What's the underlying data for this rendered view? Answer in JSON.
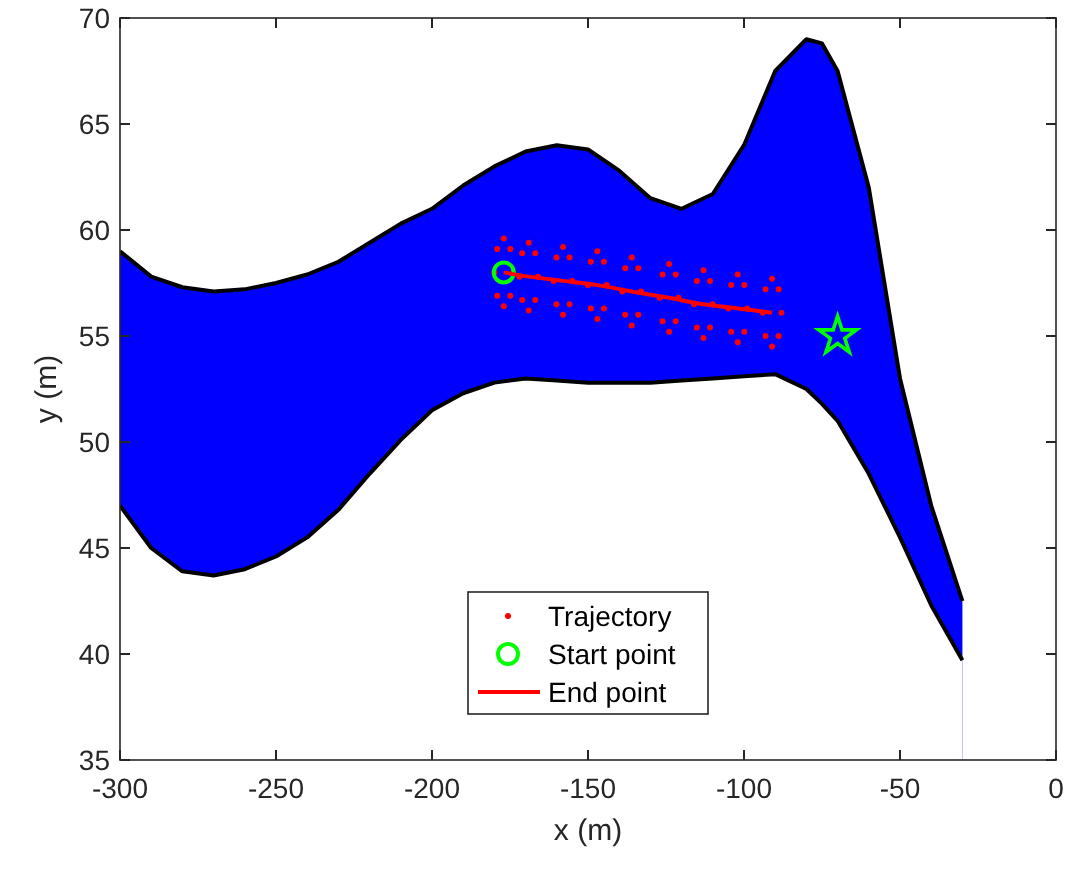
{
  "chart_data": {
    "type": "area",
    "xlabel": "x (m)",
    "ylabel": "y (m)",
    "xlim": [
      -300,
      0
    ],
    "ylim": [
      35,
      70
    ],
    "xticks": [
      -300,
      -250,
      -200,
      -150,
      -100,
      -50,
      0
    ],
    "yticks": [
      35,
      40,
      45,
      50,
      55,
      60,
      65,
      70
    ],
    "grid": false,
    "legend": "bottom",
    "series": [
      {
        "color": "#0000ff",
        "x": [
          -300,
          -290,
          -280,
          -270,
          -260,
          -250,
          -240,
          -230,
          -220,
          -210,
          -200,
          -190,
          -180,
          -170,
          -160,
          -150,
          -140,
          -130,
          -120,
          -110,
          -100,
          -90,
          -80,
          -75,
          -70,
          -60,
          -50,
          -40,
          -30
        ],
        "values": [
          59,
          57.8,
          57.3,
          57.1,
          57.2,
          57.5,
          57.9,
          58.5,
          59.4,
          60.3,
          61,
          62.1,
          63,
          63.7,
          64,
          63.8,
          62.8,
          61.5,
          61,
          61.7,
          64,
          67.5,
          69,
          68.8,
          67.5,
          62,
          53,
          47,
          42.5
        ]
      },
      {
        "color": "#ffffff",
        "x": [
          -300,
          -290,
          -280,
          -270,
          -260,
          -250,
          -240,
          -230,
          -220,
          -210,
          -200,
          -190,
          -180,
          -170,
          -160,
          -150,
          -140,
          -130,
          -120,
          -110,
          -100,
          -90,
          -80,
          -75,
          -70,
          -60,
          -50,
          -40,
          -30
        ],
        "values": [
          47,
          45,
          43.9,
          43.7,
          44,
          44.6,
          45.5,
          46.8,
          48.5,
          50.1,
          51.5,
          52.3,
          52.8,
          53,
          52.9,
          52.8,
          52.8,
          52.8,
          52.9,
          53,
          53.1,
          53.2,
          52.5,
          51.8,
          51,
          48.5,
          45.5,
          42.3,
          39.7
        ]
      },
      {
        "type": "scatter",
        "name": "Trajectory",
        "color": "#ff0000",
        "x": [
          -177,
          -174.9,
          -174,
          -174.9,
          -177,
          -179.1,
          -180,
          -179.1,
          -169,
          -166.9,
          -166,
          -166.9,
          -169,
          -171.1,
          -172,
          -171.1,
          -158,
          -155.9,
          -155,
          -155.9,
          -158,
          -160.1,
          -161,
          -160.1,
          -147,
          -144.9,
          -144,
          -144.9,
          -147,
          -149.1,
          -150,
          -149.1,
          -136,
          -133.9,
          -133,
          -133.9,
          -136,
          -138.1,
          -139,
          -138.1,
          -124,
          -121.9,
          -121,
          -121.9,
          -124,
          -126.1,
          -127,
          -126.1,
          -113,
          -110.9,
          -110,
          -110.9,
          -113,
          -115.1,
          -116,
          -115.1,
          -102,
          -99.9,
          -99,
          -99.9,
          -102,
          -104.1,
          -105,
          -104.1,
          -91,
          -88.9,
          -88,
          -88.9,
          -91,
          -93.1,
          -94,
          -93.1
        ],
        "values": [
          59.6,
          59.1,
          58,
          56.9,
          56.4,
          56.9,
          58,
          59.1,
          59.4,
          58.9,
          57.8,
          56.7,
          56.2,
          56.7,
          57.8,
          58.9,
          59.2,
          58.7,
          57.6,
          56.5,
          56,
          56.5,
          57.6,
          58.7,
          59,
          58.5,
          57.4,
          56.3,
          55.8,
          56.3,
          57.4,
          58.5,
          58.7,
          58.2,
          57.1,
          56,
          55.5,
          56,
          57.1,
          58.2,
          58.4,
          57.9,
          56.8,
          55.7,
          55.2,
          55.7,
          56.8,
          57.9,
          58.1,
          57.6,
          56.5,
          55.4,
          54.9,
          55.4,
          56.5,
          57.6,
          57.9,
          57.4,
          56.3,
          55.2,
          54.7,
          55.2,
          56.3,
          57.4,
          57.7,
          57.2,
          56.1,
          55,
          54.5,
          55,
          56.1,
          57.2
        ]
      },
      {
        "type": "scatter",
        "name": "Start point",
        "color": "#00ff00",
        "marker": "circle",
        "x": [
          -177
        ],
        "values": [
          58
        ]
      },
      {
        "type": "line",
        "name": "End point",
        "color": "#ff0000",
        "x": [
          -177,
          -169,
          -158,
          -147,
          -136,
          -124,
          -113,
          -102,
          -91
        ],
        "values": [
          58,
          57.8,
          57.6,
          57.4,
          57.1,
          56.8,
          56.5,
          56.3,
          56.1
        ]
      },
      {
        "type": "scatter",
        "color": "#00ff00",
        "marker": "star",
        "x": [
          -70
        ],
        "values": [
          55
        ]
      }
    ]
  }
}
